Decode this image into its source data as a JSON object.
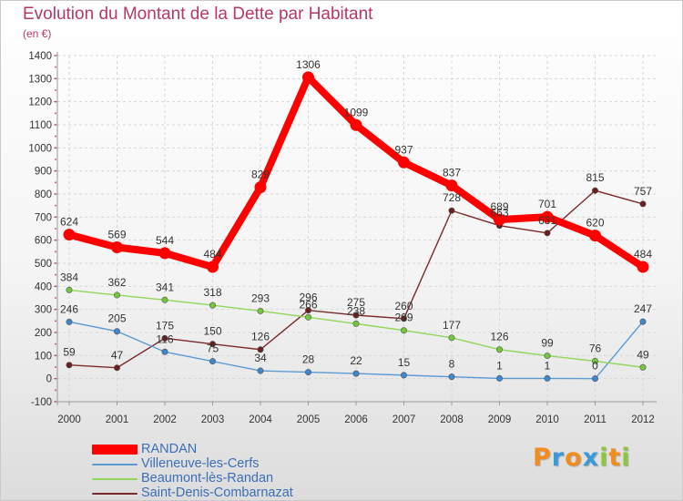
{
  "chart_data": {
    "type": "line",
    "title": "Evolution du Montant de la Dette par Habitant",
    "subtitle": "(en €)",
    "x": [
      "2000",
      "2001",
      "2002",
      "2003",
      "2004",
      "2005",
      "2006",
      "2007",
      "2008",
      "2009",
      "2010",
      "2011",
      "2012"
    ],
    "ylim": [
      -100,
      1400
    ],
    "yticks": [
      -100,
      0,
      100,
      200,
      300,
      400,
      500,
      600,
      700,
      800,
      900,
      1000,
      1100,
      1200,
      1300,
      1400
    ],
    "series": [
      {
        "name": "Saint-Denis-Combarnazat",
        "color": "#7a2a2a",
        "marker": "#6a1f1f",
        "values": [
          59,
          47,
          175,
          150,
          126,
          296,
          275,
          260,
          728,
          663,
          631,
          815,
          757
        ]
      },
      {
        "name": "Villeneuve-les-Cerfs",
        "color": "#5b9ad3",
        "marker": "#3f86cc",
        "values": [
          246,
          205,
          116,
          75,
          34,
          28,
          22,
          15,
          8,
          1,
          1,
          0,
          247
        ]
      },
      {
        "name": "Beaumont-lès-Randan",
        "color": "#8fd65a",
        "marker": "#74c73d",
        "values": [
          384,
          362,
          341,
          318,
          293,
          266,
          238,
          209,
          177,
          126,
          99,
          76,
          49
        ]
      },
      {
        "name": "RANDAN",
        "color": "#ff0000",
        "marker": "#ff0000",
        "values": [
          624,
          569,
          544,
          484,
          829,
          1306,
          1099,
          937,
          837,
          689,
          701,
          620,
          484
        ]
      }
    ]
  },
  "legend": [
    {
      "name": "RANDAN",
      "color": "#ff0000"
    },
    {
      "name": "Villeneuve-les-Cerfs",
      "color": "#5b9ad3"
    },
    {
      "name": "Beaumont-lès-Randan",
      "color": "#8fd65a"
    },
    {
      "name": "Saint-Denis-Combarnazat",
      "color": "#7a2a2a"
    }
  ],
  "logo": {
    "letters": [
      {
        "ch": "P",
        "color": "#f28c1c"
      },
      {
        "ch": "r",
        "color": "#3a9ad9"
      },
      {
        "ch": "o",
        "color": "#f28c1c"
      },
      {
        "ch": "x",
        "color": "#3a9ad9"
      },
      {
        "ch": "i",
        "color": "#8cc63f"
      },
      {
        "ch": "t",
        "color": "#f28c1c"
      },
      {
        "ch": "i",
        "color": "#8cc63f"
      }
    ]
  }
}
